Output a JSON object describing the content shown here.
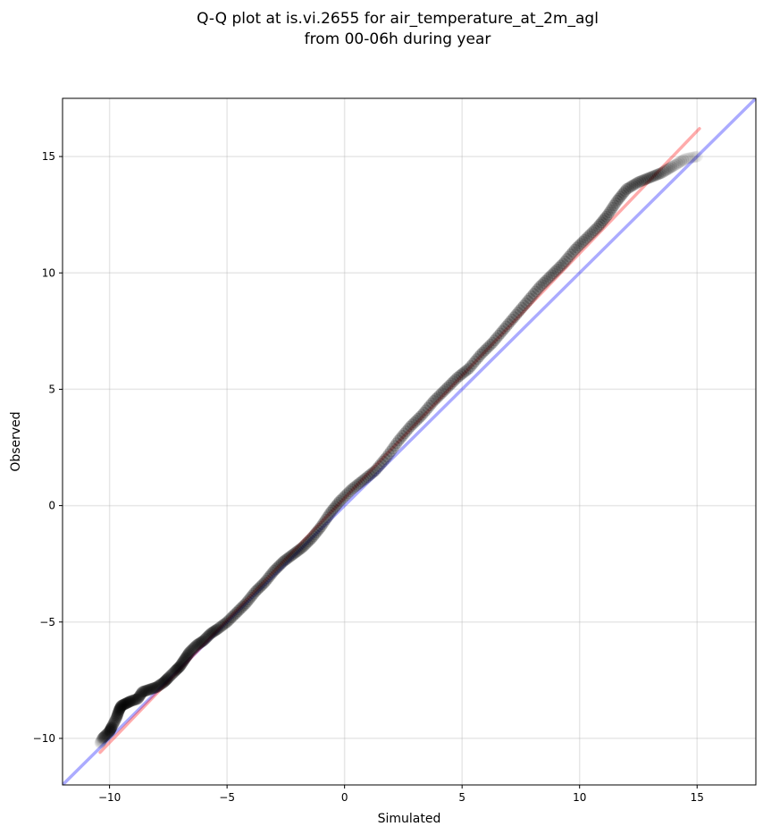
{
  "chart_data": {
    "type": "scatter",
    "title_lines": [
      "Q-Q plot at is.vi.2655 for air_temperature_at_2m_agl",
      "from 00-06h during year"
    ],
    "xlabel": "Simulated",
    "ylabel": "Observed",
    "xlim": [
      -12,
      17.5
    ],
    "ylim": [
      -12,
      17.5
    ],
    "xticks": [
      -10,
      -5,
      0,
      5,
      10,
      15
    ],
    "yticks": [
      -10,
      -5,
      0,
      5,
      10,
      15
    ],
    "xtick_labels": [
      "−10",
      "−5",
      "0",
      "5",
      "10",
      "15"
    ],
    "ytick_labels": [
      "−10",
      "−5",
      "0",
      "5",
      "10",
      "15"
    ],
    "grid": true,
    "lines": [
      {
        "role": "identity",
        "color": "#0000ff",
        "alpha": 0.33,
        "x": [
          -12,
          17.5
        ],
        "y": [
          -12,
          17.5
        ]
      },
      {
        "role": "fit",
        "color": "#ff0000",
        "alpha": 0.33,
        "x": [
          -10.4,
          15.1
        ],
        "y": [
          -10.6,
          16.2
        ]
      }
    ],
    "point_color": "#000000",
    "quantile_points": [
      [
        -10.4,
        -10.2
      ],
      [
        -10.3,
        -10.0
      ],
      [
        -10.2,
        -9.9
      ],
      [
        -10.0,
        -9.7
      ],
      [
        -9.9,
        -9.5
      ],
      [
        -9.7,
        -9.1
      ],
      [
        -9.6,
        -8.8
      ],
      [
        -9.5,
        -8.6
      ],
      [
        -9.3,
        -8.5
      ],
      [
        -9.1,
        -8.4
      ],
      [
        -8.8,
        -8.3
      ],
      [
        -8.6,
        -8.0
      ],
      [
        -8.3,
        -7.9
      ],
      [
        -8.0,
        -7.8
      ],
      [
        -7.7,
        -7.6
      ],
      [
        -7.5,
        -7.4
      ],
      [
        -7.2,
        -7.1
      ],
      [
        -7.0,
        -6.9
      ],
      [
        -6.8,
        -6.6
      ],
      [
        -6.6,
        -6.3
      ],
      [
        -6.3,
        -6.0
      ],
      [
        -6.0,
        -5.8
      ],
      [
        -5.7,
        -5.5
      ],
      [
        -5.4,
        -5.3
      ],
      [
        -5.0,
        -5.0
      ],
      [
        -4.6,
        -4.6
      ],
      [
        -4.2,
        -4.2
      ],
      [
        -3.8,
        -3.7
      ],
      [
        -3.4,
        -3.3
      ],
      [
        -3.0,
        -2.8
      ],
      [
        -2.6,
        -2.4
      ],
      [
        -2.2,
        -2.1
      ],
      [
        -1.8,
        -1.8
      ],
      [
        -1.4,
        -1.4
      ],
      [
        -1.0,
        -0.9
      ],
      [
        -0.6,
        -0.3
      ],
      [
        -0.2,
        0.2
      ],
      [
        0.3,
        0.7
      ],
      [
        0.8,
        1.1
      ],
      [
        1.3,
        1.5
      ],
      [
        1.8,
        2.1
      ],
      [
        2.3,
        2.8
      ],
      [
        2.8,
        3.4
      ],
      [
        3.3,
        3.9
      ],
      [
        3.8,
        4.5
      ],
      [
        4.3,
        5.0
      ],
      [
        4.8,
        5.5
      ],
      [
        5.3,
        5.9
      ],
      [
        5.8,
        6.5
      ],
      [
        6.3,
        7.0
      ],
      [
        6.8,
        7.6
      ],
      [
        7.3,
        8.2
      ],
      [
        7.8,
        8.8
      ],
      [
        8.3,
        9.4
      ],
      [
        8.8,
        9.9
      ],
      [
        9.3,
        10.4
      ],
      [
        9.8,
        11.0
      ],
      [
        10.3,
        11.5
      ],
      [
        10.8,
        12.0
      ],
      [
        11.2,
        12.5
      ],
      [
        11.6,
        13.1
      ],
      [
        12.0,
        13.6
      ],
      [
        12.5,
        13.9
      ],
      [
        13.0,
        14.1
      ],
      [
        13.5,
        14.3
      ],
      [
        14.0,
        14.6
      ],
      [
        14.5,
        14.9
      ],
      [
        15.0,
        15.0
      ]
    ]
  }
}
